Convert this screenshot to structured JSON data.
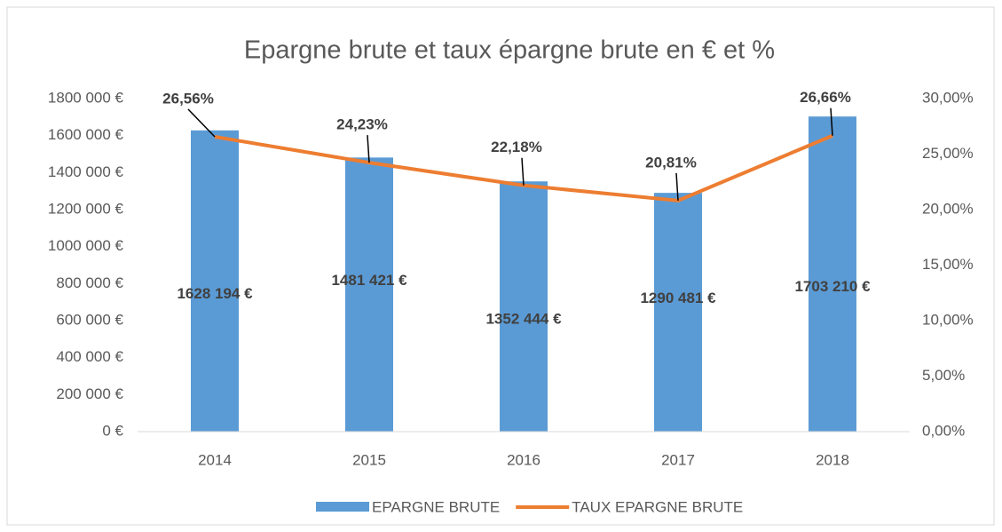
{
  "chart_data": {
    "type": "bar",
    "title": "Epargne brute et taux épargne brute en € et %",
    "categories": [
      "2014",
      "2015",
      "2016",
      "2017",
      "2018"
    ],
    "series": [
      {
        "name": "EPARGNE BRUTE",
        "type": "bar",
        "color": "#5b9bd5",
        "values": [
          1628194,
          1481421,
          1352444,
          1290481,
          1703210
        ],
        "value_labels": [
          "1628 194 €",
          "1481 421 €",
          "1352 444 €",
          "1290 481 €",
          "1703 210 €"
        ]
      },
      {
        "name": "TAUX EPARGNE BRUTE",
        "type": "line",
        "axis": "y2",
        "color": "#ed7d31",
        "values": [
          26.56,
          24.23,
          22.18,
          20.81,
          26.66
        ],
        "value_labels": [
          "26,56%",
          "24,23%",
          "22,18%",
          "20,81%",
          "26,66%"
        ]
      }
    ],
    "ylim": [
      0,
      1800000
    ],
    "yticks": [
      {
        "value": 0,
        "label": "0 €"
      },
      {
        "value": 200000,
        "label": "200 000 €"
      },
      {
        "value": 400000,
        "label": "400 000 €"
      },
      {
        "value": 600000,
        "label": "600 000 €"
      },
      {
        "value": 800000,
        "label": "800 000 €"
      },
      {
        "value": 1000000,
        "label": "1000 000 €"
      },
      {
        "value": 1200000,
        "label": "1200 000 €"
      },
      {
        "value": 1400000,
        "label": "1400 000 €"
      },
      {
        "value": 1600000,
        "label": "1600 000 €"
      },
      {
        "value": 1800000,
        "label": "1800 000 €"
      }
    ],
    "y2lim": [
      0,
      30
    ],
    "y2ticks": [
      {
        "value": 0,
        "label": "0,00%"
      },
      {
        "value": 5,
        "label": "5,00%"
      },
      {
        "value": 10,
        "label": "10,00%"
      },
      {
        "value": 15,
        "label": "15,00%"
      },
      {
        "value": 20,
        "label": "20,00%"
      },
      {
        "value": 25,
        "label": "25,00%"
      },
      {
        "value": 30,
        "label": "30,00%"
      }
    ],
    "grid": false,
    "legend": "bottom"
  }
}
